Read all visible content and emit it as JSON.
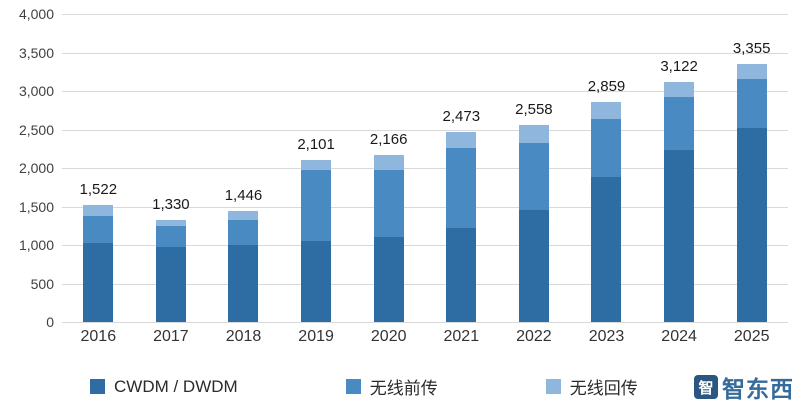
{
  "chart_data": {
    "type": "bar",
    "stacked": true,
    "title": "",
    "xlabel": "",
    "ylabel": "",
    "grid": true,
    "legend_position": "bottom",
    "ylim": [
      0,
      4000
    ],
    "y_ticks": [
      {
        "value": 0,
        "label": "0"
      },
      {
        "value": 500,
        "label": "500"
      },
      {
        "value": 1000,
        "label": "1,000"
      },
      {
        "value": 1500,
        "label": "1,500"
      },
      {
        "value": 2000,
        "label": "2,000"
      },
      {
        "value": 2500,
        "label": "2,500"
      },
      {
        "value": 3000,
        "label": "3,000"
      },
      {
        "value": 3500,
        "label": "3,500"
      },
      {
        "value": 4000,
        "label": "4,000"
      }
    ],
    "categories": [
      "2016",
      "2017",
      "2018",
      "2019",
      "2020",
      "2021",
      "2022",
      "2023",
      "2024",
      "2025"
    ],
    "series": [
      {
        "key": "cwdm-dwdm",
        "name": "CWDM / DWDM",
        "color": "#2E6CA4",
        "values": [
          1020,
          980,
          1000,
          1050,
          1100,
          1220,
          1450,
          1880,
          2230,
          2520
        ]
      },
      {
        "key": "wireless-fronthaul",
        "name": "无线前传",
        "color": "#4A8AC2",
        "values": [
          360,
          270,
          330,
          930,
          880,
          1040,
          880,
          760,
          690,
          640
        ]
      },
      {
        "key": "wireless-backhaul",
        "name": "无线回传",
        "color": "#8FB7DD",
        "values": [
          142,
          80,
          116,
          121,
          186,
          213,
          228,
          219,
          202,
          195
        ]
      }
    ],
    "totals": [
      1522,
      1330,
      1446,
      2101,
      2166,
      2473,
      2558,
      2859,
      3122,
      3355
    ],
    "totals_formatted": [
      "1,522",
      "1,330",
      "1,446",
      "2,101",
      "2,166",
      "2,473",
      "2,558",
      "2,859",
      "3,122",
      "3,355"
    ]
  },
  "watermark": {
    "logo_char": "智",
    "text": "智东西"
  }
}
